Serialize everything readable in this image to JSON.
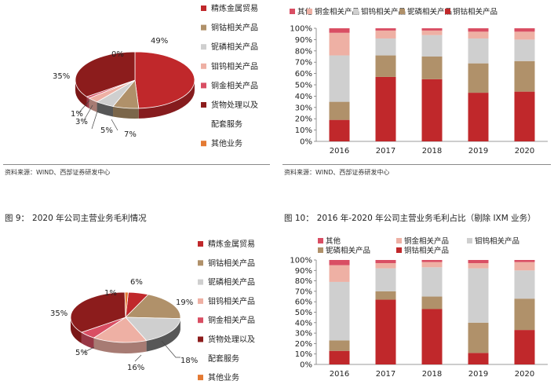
{
  "colors": {
    "s1": "#c0282b",
    "s2": "#b0916a",
    "s3": "#cfcfcf",
    "s4": "#eeb0a4",
    "s5": "#d94e63",
    "s6": "#8c1c1c",
    "s7": "#e47a33",
    "dark1": "#7a1616",
    "dark2": "#575757"
  },
  "source_text": "资料来源：WIND、西部证券研发中心",
  "figure_titles": {
    "fig9": {
      "number": "图 9：",
      "text": "2020 年公司主营业务毛利情况"
    },
    "fig10": {
      "number": "图 10：",
      "text": "2016 年-2020 年公司主营业务毛利占比（剔除 IXM 业务）"
    }
  },
  "chart_data": [
    {
      "type": "pie",
      "title": "",
      "slices": [
        {
          "label": "精炼金属贸易",
          "value": 49,
          "text": "49%"
        },
        {
          "label": "铜钴相关产品",
          "value": 7,
          "text": "7%"
        },
        {
          "label": "铌磷相关产品",
          "value": 5,
          "text": "5%"
        },
        {
          "label": "钼钨相关产品",
          "value": 3,
          "text": "3%"
        },
        {
          "label": "铜金相关产品",
          "value": 1,
          "text": "1%"
        },
        {
          "label": "货物处理以及配套服务",
          "value": 35,
          "text": "35%"
        },
        {
          "label": "其他业务",
          "value": 0,
          "text": "0%"
        }
      ],
      "legend": {
        "position": "right",
        "entries": [
          "精炼金属贸易",
          "铜钴相关产品",
          "铌磷相关产品",
          "钼钨相关产品",
          "铜金相关产品",
          "货物处理以及",
          "配套服务",
          "其他业务"
        ]
      }
    },
    {
      "type": "bar",
      "stacked": true,
      "title": "",
      "categories": [
        "2016",
        "2017",
        "2018",
        "2019",
        "2020"
      ],
      "ylim": [
        0,
        100
      ],
      "yticks": [
        "0%",
        "10%",
        "20%",
        "30%",
        "40%",
        "50%",
        "60%",
        "70%",
        "80%",
        "90%",
        "100%"
      ],
      "series": [
        {
          "name": "铜钴相关产品",
          "values": [
            19,
            57,
            55,
            43,
            44
          ]
        },
        {
          "name": "铌磷相关产品",
          "values": [
            16,
            19,
            20,
            26,
            27
          ]
        },
        {
          "name": "钼钨相关产品",
          "values": [
            41,
            15,
            19,
            22,
            19
          ]
        },
        {
          "name": "铜金相关产品",
          "values": [
            20,
            7,
            4,
            6,
            7
          ]
        },
        {
          "name": "其他",
          "values": [
            4,
            2,
            2,
            3,
            3
          ]
        }
      ],
      "legend": {
        "position": "top",
        "entries": [
          "其他",
          "铜金相关产品",
          "钼钨相关产品",
          "铌磷相关产品",
          "铜钴相关产品"
        ]
      }
    },
    {
      "type": "pie",
      "title": "",
      "slices": [
        {
          "label": "精炼金属贸易",
          "value": 6,
          "text": "6%"
        },
        {
          "label": "铜钴相关产品",
          "value": 19,
          "text": "19%"
        },
        {
          "label": "铌磷相关产品",
          "value": 18,
          "text": "18%"
        },
        {
          "label": "钼钨相关产品",
          "value": 16,
          "text": "16%"
        },
        {
          "label": "铜金相关产品",
          "value": 5,
          "text": "5%"
        },
        {
          "label": "货物处理以及配套服务",
          "value": 35,
          "text": "35%"
        },
        {
          "label": "其他业务",
          "value": 1,
          "text": "1%"
        }
      ],
      "legend": {
        "position": "right",
        "entries": [
          "精炼金属贸易",
          "铜钴相关产品",
          "铌磷相关产品",
          "钼钨相关产品",
          "铜金相关产品",
          "货物处理以及",
          "配套服务",
          "其他业务"
        ]
      }
    },
    {
      "type": "bar",
      "stacked": true,
      "title": "",
      "categories": [
        "2016",
        "2017",
        "2018",
        "2019",
        "2020"
      ],
      "ylim": [
        0,
        100
      ],
      "yticks": [
        "0%",
        "10%",
        "20%",
        "30%",
        "40%",
        "50%",
        "60%",
        "70%",
        "80%",
        "90%",
        "100%"
      ],
      "series": [
        {
          "name": "铜钴相关产品",
          "values": [
            13,
            62,
            53,
            11,
            33
          ]
        },
        {
          "name": "铌磷相关产品",
          "values": [
            10,
            8,
            12,
            29,
            30
          ]
        },
        {
          "name": "钼钨相关产品",
          "values": [
            56,
            22,
            28,
            52,
            27
          ]
        },
        {
          "name": "铜金相关产品",
          "values": [
            16,
            5,
            5,
            5,
            8
          ]
        },
        {
          "name": "其他",
          "values": [
            5,
            3,
            2,
            3,
            2
          ]
        }
      ],
      "legend": {
        "position": "top",
        "entries": [
          "其他",
          "铜金相关产品",
          "钼钨相关产品",
          "铌磷相关产品",
          "铜钴相关产品"
        ]
      }
    }
  ]
}
